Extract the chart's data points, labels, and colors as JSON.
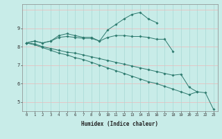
{
  "xlabel": "Humidex (Indice chaleur)",
  "x_values": [
    0,
    1,
    2,
    3,
    4,
    5,
    6,
    7,
    8,
    9,
    10,
    11,
    12,
    13,
    14,
    15,
    16,
    17,
    18,
    19,
    20,
    21,
    22,
    23
  ],
  "series": [
    {
      "y": [
        8.2,
        8.3,
        8.2,
        8.3,
        8.6,
        8.7,
        8.6,
        8.5,
        8.5,
        8.3,
        8.9,
        9.2,
        9.5,
        9.75,
        9.85,
        9.5,
        9.3,
        null,
        null,
        null,
        null,
        null,
        null,
        null
      ]
    },
    {
      "y": [
        8.2,
        8.3,
        8.2,
        8.3,
        8.5,
        8.55,
        8.5,
        8.45,
        8.45,
        8.3,
        8.5,
        8.6,
        8.6,
        8.55,
        8.55,
        8.5,
        8.4,
        8.4,
        7.75,
        null,
        null,
        null,
        null,
        null
      ]
    },
    {
      "y": [
        8.2,
        8.15,
        8.0,
        7.9,
        7.8,
        7.7,
        7.65,
        7.55,
        7.45,
        7.35,
        7.25,
        7.15,
        7.05,
        6.95,
        6.85,
        6.75,
        6.65,
        6.55,
        6.45,
        6.5,
        5.8,
        5.55,
        null,
        null
      ]
    },
    {
      "y": [
        8.2,
        8.1,
        7.95,
        7.8,
        7.65,
        7.55,
        7.4,
        7.3,
        7.15,
        7.0,
        6.85,
        6.7,
        6.55,
        6.4,
        6.25,
        6.1,
        6.0,
        5.85,
        5.7,
        5.55,
        5.4,
        5.55,
        5.5,
        4.6
      ]
    }
  ],
  "line_color": "#2d7a6e",
  "bg_color": "#c8ece8",
  "grid_h_color": "#f0b8b8",
  "grid_v_color": "#a8d8d4",
  "ylim": [
    4.5,
    10.3
  ],
  "yticks": [
    5,
    6,
    7,
    8,
    9
  ],
  "xlim": [
    -0.5,
    23.5
  ]
}
